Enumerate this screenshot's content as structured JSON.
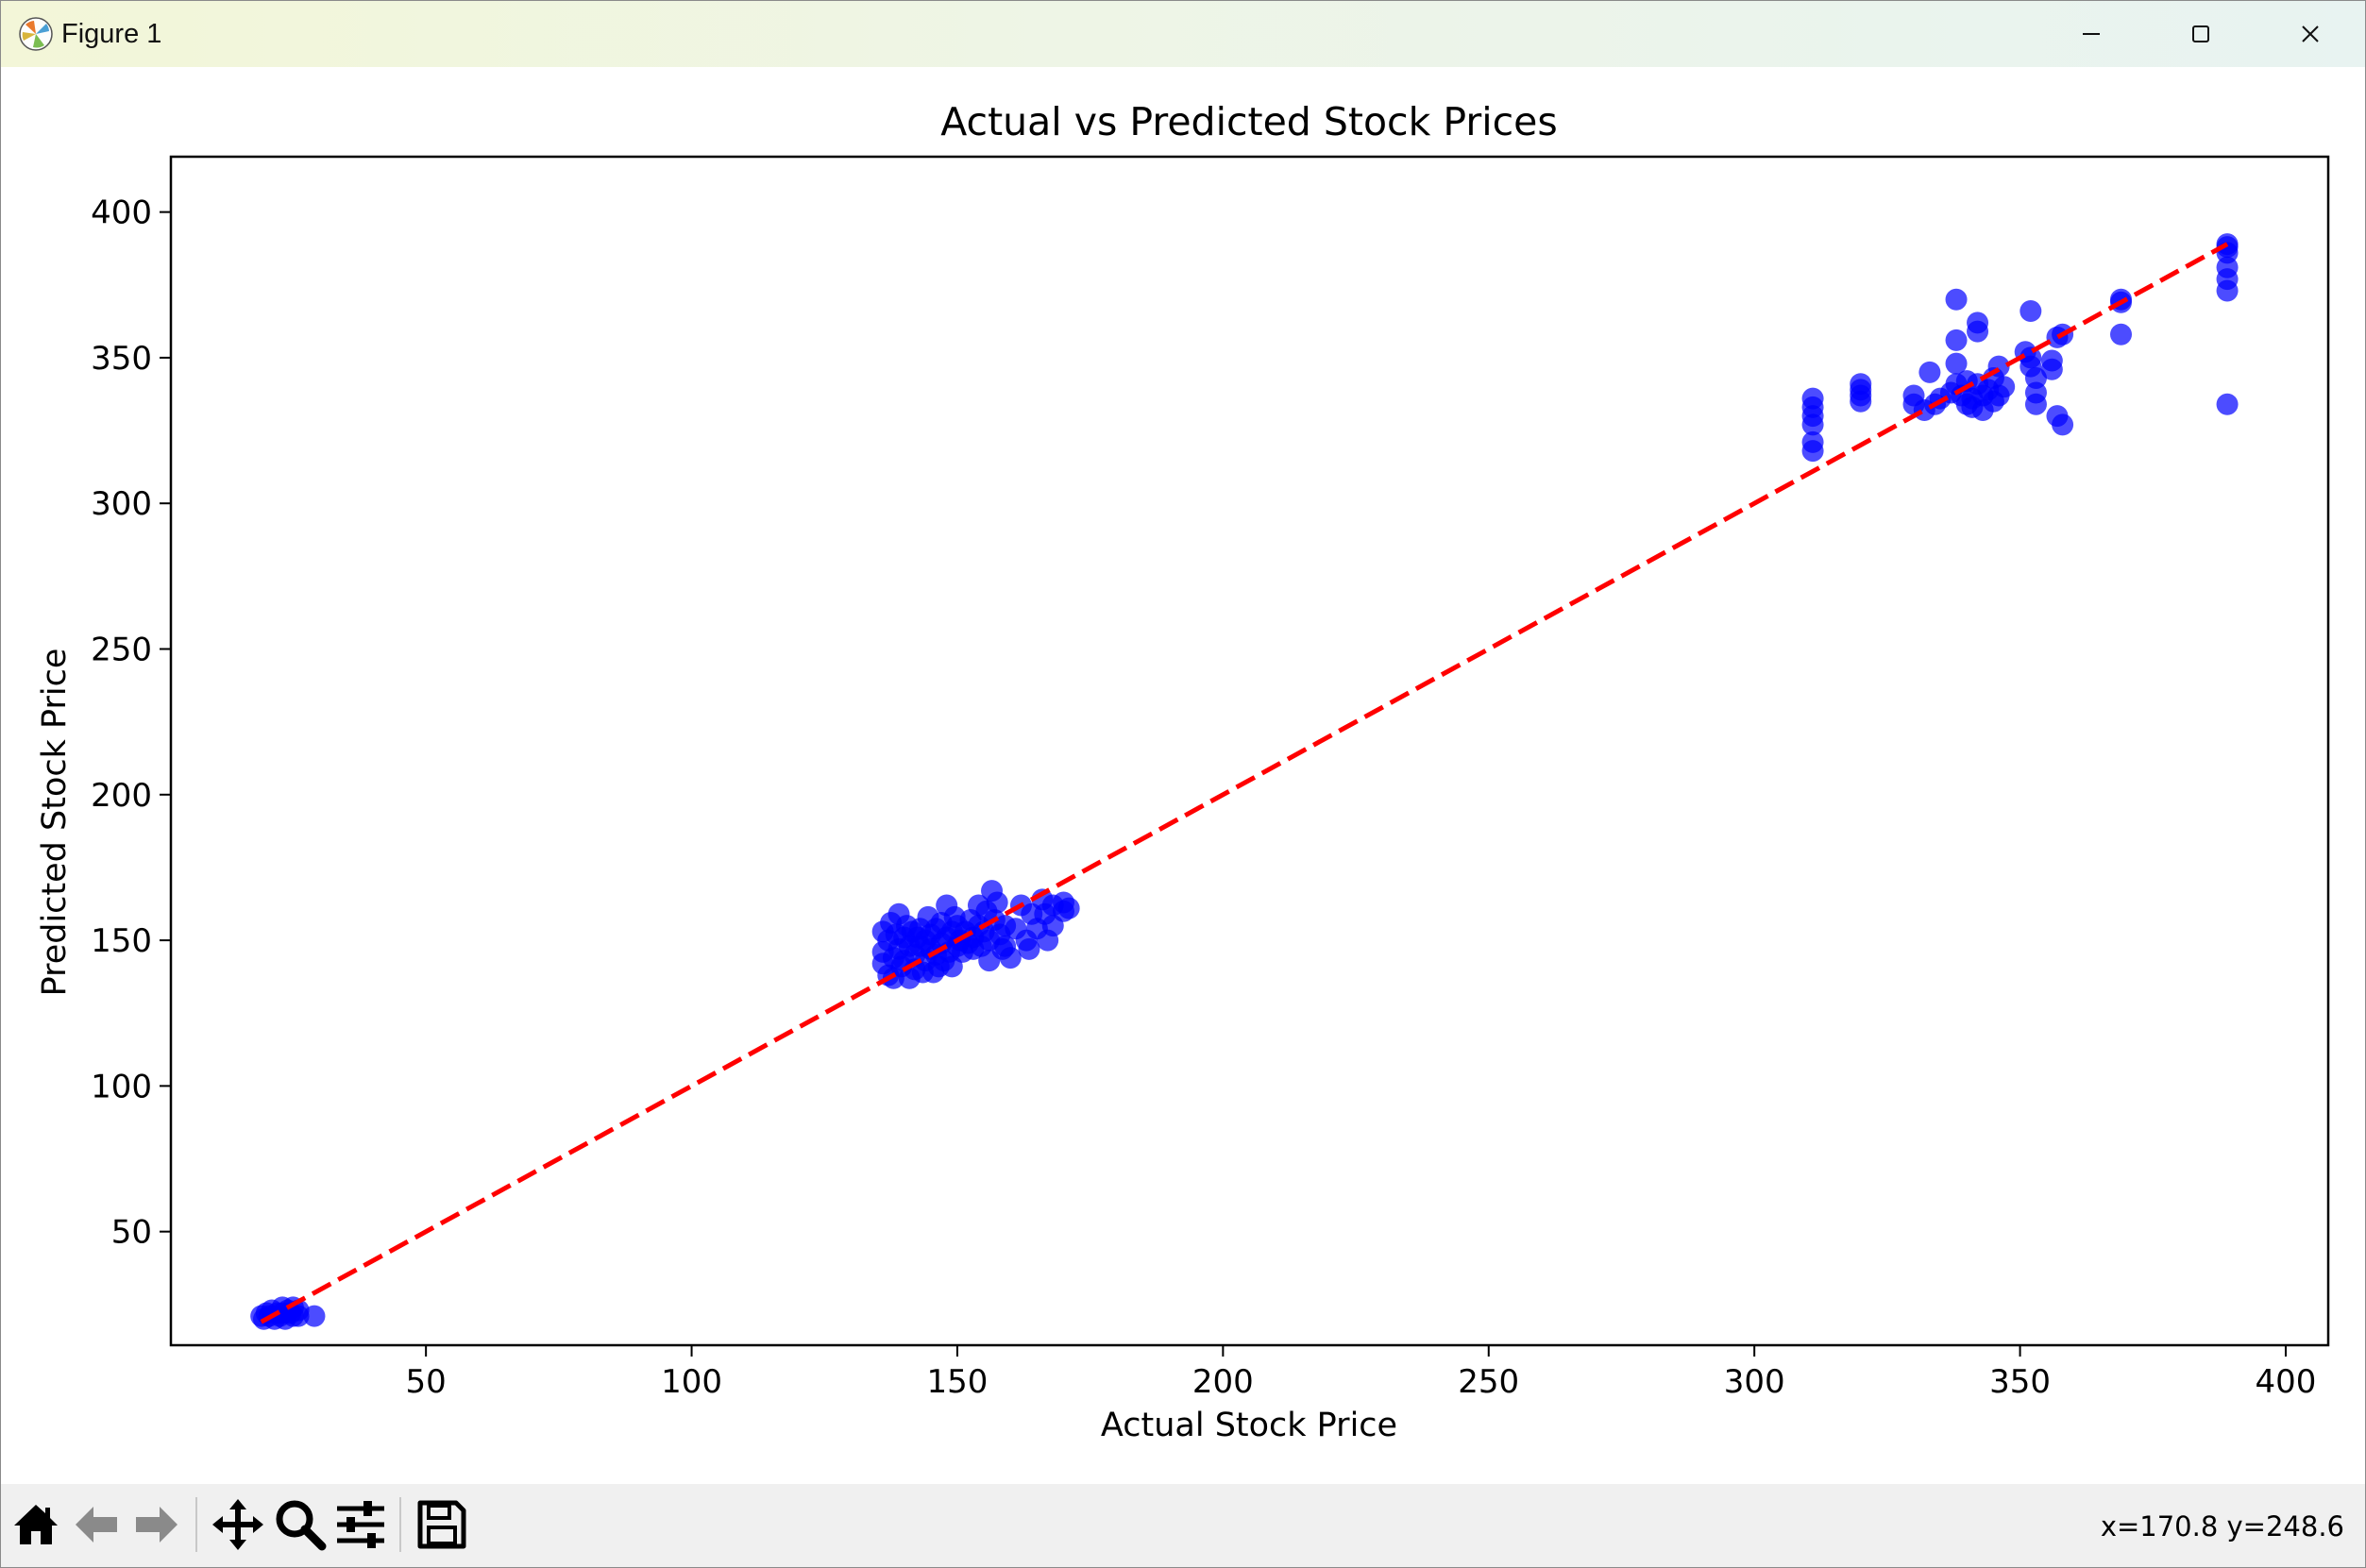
{
  "window": {
    "title": "Figure 1"
  },
  "toolbar": {
    "buttons": [
      "home-icon",
      "back-arrow-icon",
      "forward-arrow-icon",
      "pan-icon",
      "zoom-icon",
      "configure-subplots-icon",
      "save-icon"
    ],
    "coords_text": "x=170.8 y=248.6"
  },
  "chart_data": {
    "type": "scatter",
    "title": "Actual vs Predicted Stock Prices",
    "xlabel": "Actual Stock Price",
    "ylabel": "Predicted Stock Price",
    "xlim": [
      2,
      408
    ],
    "ylim": [
      11,
      419
    ],
    "xticks": [
      50,
      100,
      150,
      200,
      250,
      300,
      350,
      400
    ],
    "yticks": [
      50,
      100,
      150,
      200,
      250,
      300,
      350,
      400
    ],
    "marker_color": "#0000ff",
    "marker_alpha": 0.7,
    "reference_line": {
      "x": [
        19,
        389
      ],
      "y": [
        19,
        389
      ],
      "color": "#ff0000",
      "style": "dashed"
    },
    "points": [
      [
        19,
        21
      ],
      [
        19.5,
        20
      ],
      [
        20,
        22
      ],
      [
        20.5,
        21
      ],
      [
        21,
        23
      ],
      [
        21.5,
        20
      ],
      [
        22,
        22
      ],
      [
        22.5,
        21
      ],
      [
        23,
        24
      ],
      [
        23,
        22
      ],
      [
        23.5,
        20
      ],
      [
        24,
        23
      ],
      [
        24.5,
        22
      ],
      [
        25,
        24
      ],
      [
        25,
        21
      ],
      [
        26,
        23
      ],
      [
        26,
        21
      ],
      [
        29,
        21
      ],
      [
        136,
        153
      ],
      [
        136,
        146
      ],
      [
        136,
        142
      ],
      [
        137,
        150
      ],
      [
        137,
        138
      ],
      [
        137.5,
        156
      ],
      [
        138,
        144
      ],
      [
        138,
        137
      ],
      [
        138.5,
        152
      ],
      [
        139,
        159
      ],
      [
        139,
        147
      ],
      [
        139.5,
        141
      ],
      [
        140,
        151
      ],
      [
        140,
        143
      ],
      [
        140.5,
        155
      ],
      [
        141,
        137
      ],
      [
        141,
        148
      ],
      [
        141.5,
        153
      ],
      [
        142,
        145
      ],
      [
        142,
        140
      ],
      [
        142.5,
        151
      ],
      [
        143,
        148
      ],
      [
        143,
        154
      ],
      [
        143.5,
        139
      ],
      [
        144,
        150
      ],
      [
        144,
        143
      ],
      [
        144.5,
        158
      ],
      [
        145,
        147
      ],
      [
        145,
        152
      ],
      [
        145.5,
        139
      ],
      [
        146,
        145
      ],
      [
        146,
        154
      ],
      [
        146.5,
        141
      ],
      [
        147,
        149
      ],
      [
        147,
        156
      ],
      [
        147.5,
        143
      ],
      [
        148,
        151
      ],
      [
        148,
        162
      ],
      [
        148.5,
        146
      ],
      [
        149,
        153
      ],
      [
        149,
        141
      ],
      [
        149.5,
        158
      ],
      [
        150,
        148
      ],
      [
        150,
        155
      ],
      [
        150.5,
        150
      ],
      [
        151,
        146
      ],
      [
        151.5,
        153
      ],
      [
        152,
        149
      ],
      [
        152.5,
        157
      ],
      [
        153,
        151
      ],
      [
        153,
        147
      ],
      [
        154,
        162
      ],
      [
        154,
        155
      ],
      [
        154.5,
        148
      ],
      [
        155,
        153
      ],
      [
        155.5,
        160
      ],
      [
        156,
        150
      ],
      [
        156,
        143
      ],
      [
        156.5,
        167
      ],
      [
        157,
        157
      ],
      [
        157.5,
        163
      ],
      [
        158,
        152
      ],
      [
        158.5,
        147
      ],
      [
        159,
        155
      ],
      [
        159,
        148
      ],
      [
        160,
        144
      ],
      [
        161,
        154
      ],
      [
        162,
        162
      ],
      [
        163,
        150
      ],
      [
        163.5,
        147
      ],
      [
        164,
        159
      ],
      [
        165,
        154
      ],
      [
        166,
        164
      ],
      [
        166.5,
        159
      ],
      [
        167,
        150
      ],
      [
        168,
        155
      ],
      [
        168,
        162
      ],
      [
        170,
        163
      ],
      [
        170,
        160
      ],
      [
        171,
        161
      ],
      [
        311,
        336
      ],
      [
        311,
        333
      ],
      [
        311,
        330
      ],
      [
        311,
        327
      ],
      [
        311,
        321
      ],
      [
        311,
        318
      ],
      [
        320,
        341
      ],
      [
        320,
        339
      ],
      [
        320,
        337
      ],
      [
        320,
        335
      ],
      [
        330,
        337
      ],
      [
        330,
        334
      ],
      [
        332,
        332
      ],
      [
        333,
        345
      ],
      [
        334,
        334
      ],
      [
        335,
        336
      ],
      [
        337,
        338
      ],
      [
        338,
        370
      ],
      [
        338,
        356
      ],
      [
        338,
        348
      ],
      [
        338,
        341
      ],
      [
        339,
        337
      ],
      [
        340,
        334
      ],
      [
        340,
        342
      ],
      [
        341,
        336
      ],
      [
        341,
        333
      ],
      [
        342,
        362
      ],
      [
        342,
        359
      ],
      [
        342,
        341
      ],
      [
        343,
        337
      ],
      [
        343,
        332
      ],
      [
        344,
        339
      ],
      [
        345,
        335
      ],
      [
        345,
        343
      ],
      [
        346,
        347
      ],
      [
        346,
        337
      ],
      [
        347,
        340
      ],
      [
        351,
        352
      ],
      [
        352,
        350
      ],
      [
        352,
        347
      ],
      [
        352,
        366
      ],
      [
        353,
        343
      ],
      [
        353,
        338
      ],
      [
        353,
        334
      ],
      [
        356,
        349
      ],
      [
        356,
        346
      ],
      [
        357,
        357
      ],
      [
        357,
        330
      ],
      [
        358,
        358
      ],
      [
        358,
        327
      ],
      [
        369,
        370
      ],
      [
        369,
        369
      ],
      [
        369,
        358
      ],
      [
        389,
        389
      ],
      [
        389,
        388
      ],
      [
        389,
        386
      ],
      [
        389,
        381
      ],
      [
        389,
        377
      ],
      [
        389,
        373
      ],
      [
        389,
        334
      ]
    ]
  }
}
